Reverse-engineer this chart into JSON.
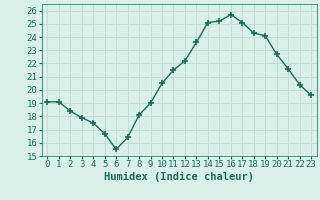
{
  "xlabel": "Humidex (Indice chaleur)",
  "x": [
    0,
    1,
    2,
    3,
    4,
    5,
    6,
    7,
    8,
    9,
    10,
    11,
    12,
    13,
    14,
    15,
    16,
    17,
    18,
    19,
    20,
    21,
    22,
    23
  ],
  "y": [
    19.1,
    19.1,
    18.4,
    17.9,
    17.5,
    16.7,
    15.5,
    16.4,
    18.1,
    19.0,
    20.5,
    21.5,
    22.2,
    23.6,
    25.1,
    25.2,
    25.7,
    25.1,
    24.3,
    24.1,
    22.7,
    21.6,
    20.4,
    19.6
  ],
  "ylim": [
    15,
    26.5
  ],
  "yticks": [
    15,
    16,
    17,
    18,
    19,
    20,
    21,
    22,
    23,
    24,
    25,
    26
  ],
  "line_color": "#1a6b5a",
  "marker": "+",
  "marker_size": 4,
  "marker_lw": 1.2,
  "line_width": 1.0,
  "bg_color": "#d8f0e8",
  "grid_color": "#c4ddd4",
  "tick_label_fontsize": 6.5,
  "xlabel_fontsize": 7.5
}
